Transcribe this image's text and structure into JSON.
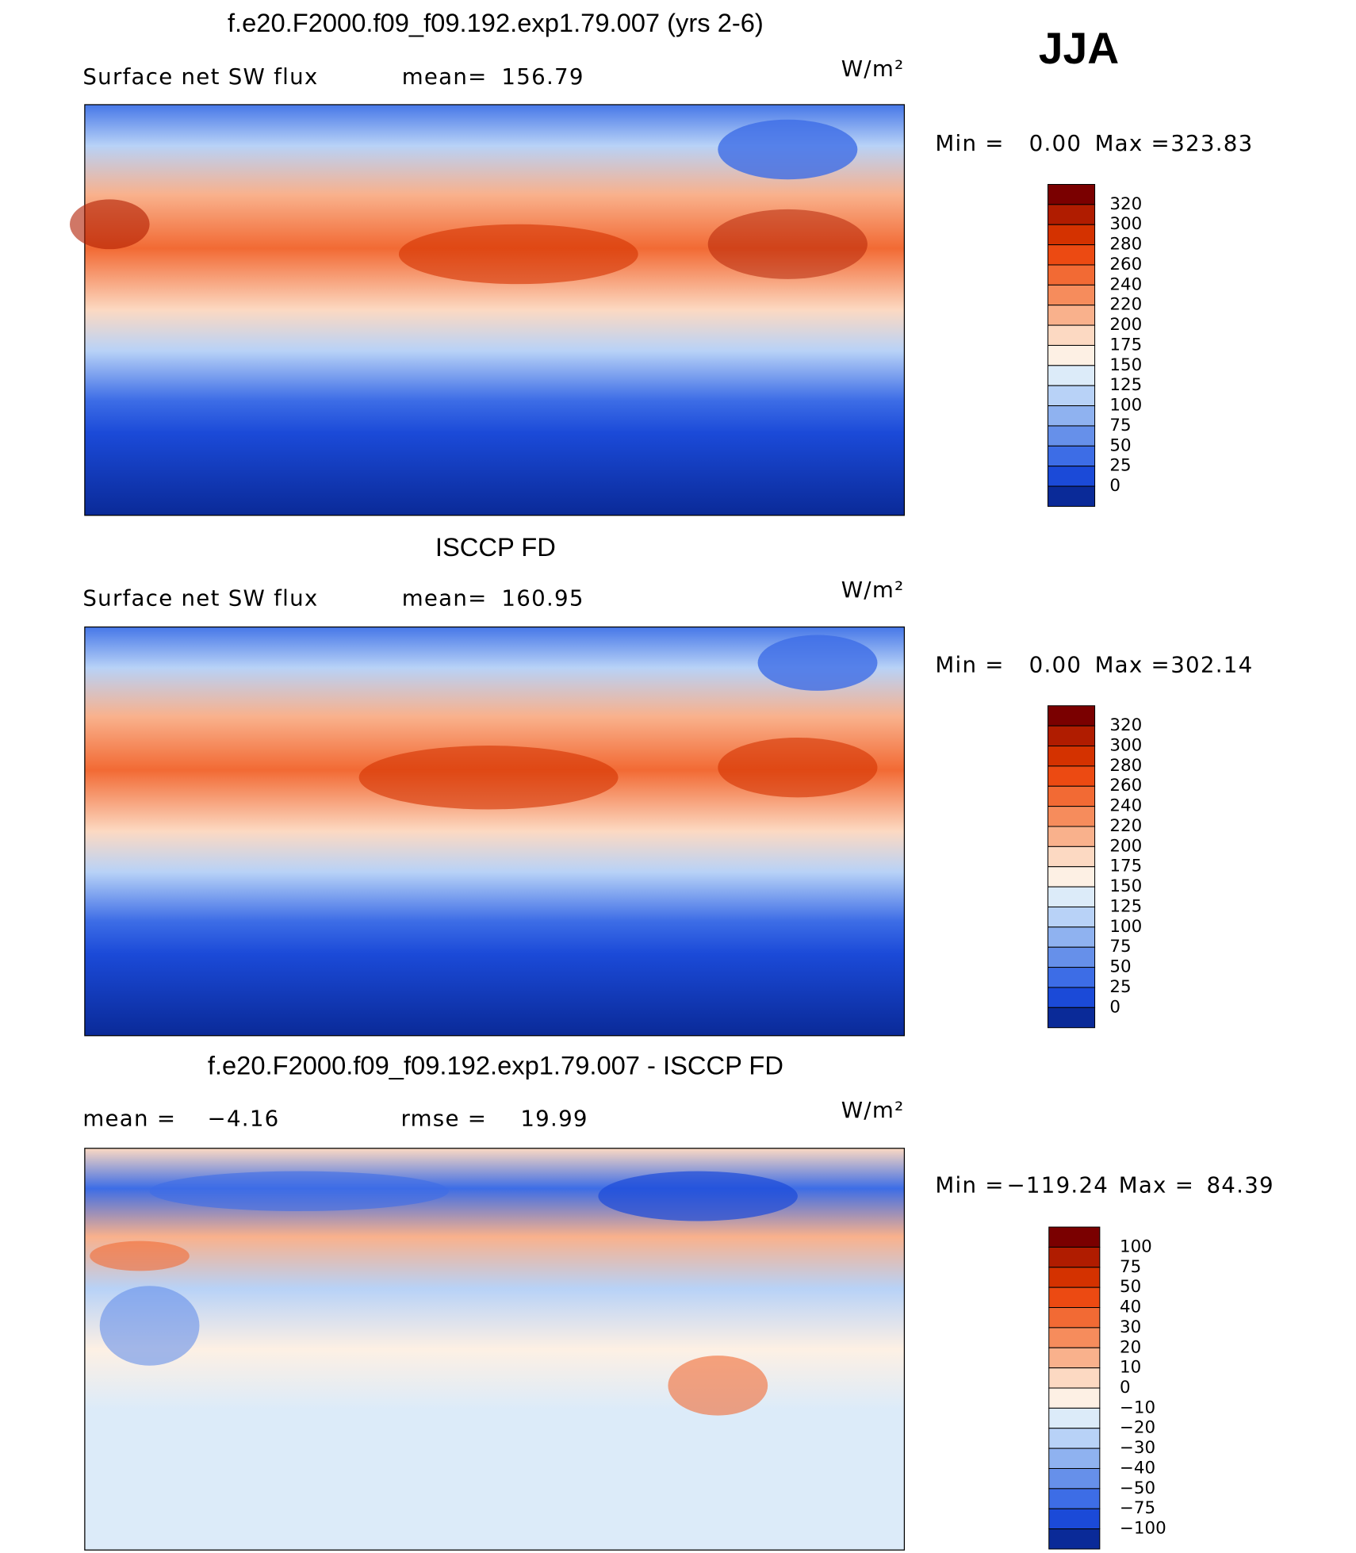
{
  "season": "JJA",
  "panels": [
    {
      "title": "f.e20.F2000.f09_f09.192.exp1.79.007 (yrs 2-6)",
      "annotations": [
        {
          "label": "Surface net SW flux"
        },
        {
          "label": "mean=",
          "value": 156.79
        }
      ],
      "units": "W/m²",
      "min_label": "Min =",
      "min": {
        "value": 0,
        "label": "0.00"
      },
      "max_label": "Max =",
      "max": 323.83,
      "levels": [
        320,
        300,
        280,
        260,
        240,
        220,
        200,
        175,
        150,
        125,
        100,
        75,
        50,
        25,
        0
      ],
      "colors": [
        "#7a0000",
        "#b01c00",
        "#d43200",
        "#ec4a12",
        "#f26a34",
        "#f68c5c",
        "#f9b18c",
        "#fcd9c2",
        "#fdf0e4",
        "#dcebf9",
        "#b8d2f7",
        "#8fb2f0",
        "#6690ea",
        "#3d6de6",
        "#1b4ad8",
        "#0a2a98"
      ]
    },
    {
      "title": "ISCCP FD",
      "annotations": [
        {
          "label": "Surface net SW flux"
        },
        {
          "label": "mean=",
          "value": 160.95
        }
      ],
      "units": "W/m²",
      "min_label": "Min =",
      "min": {
        "value": 0,
        "label": "0.00"
      },
      "max_label": "Max =",
      "max": 302.14,
      "levels": [
        320,
        300,
        280,
        260,
        240,
        220,
        200,
        175,
        150,
        125,
        100,
        75,
        50,
        25,
        0
      ],
      "colors": [
        "#7a0000",
        "#b01c00",
        "#d43200",
        "#ec4a12",
        "#f26a34",
        "#f68c5c",
        "#f9b18c",
        "#fcd9c2",
        "#fdf0e4",
        "#dcebf9",
        "#b8d2f7",
        "#8fb2f0",
        "#6690ea",
        "#3d6de6",
        "#1b4ad8",
        "#0a2a98"
      ]
    },
    {
      "title": "f.e20.F2000.f09_f09.192.exp1.79.007 - ISCCP FD",
      "annotations": [
        {
          "label": "mean =",
          "value": {
            "value": -4.16,
            "label": "−4.16"
          }
        },
        {
          "label": "rmse =",
          "value": 19.99
        }
      ],
      "units": "W/m²",
      "min_label": "Min =",
      "min": {
        "value": -119.24,
        "label": "−119.24"
      },
      "max_label": "Max =",
      "max": 84.39,
      "levels": [
        100,
        75,
        50,
        40,
        30,
        20,
        10,
        0,
        {
          "value": -10,
          "label": "−10"
        },
        {
          "value": -20,
          "label": "−20"
        },
        {
          "value": -30,
          "label": "−30"
        },
        {
          "value": -40,
          "label": "−40"
        },
        {
          "value": -50,
          "label": "−50"
        },
        {
          "value": -75,
          "label": "−75"
        },
        {
          "value": -100,
          "label": "−100"
        }
      ],
      "colors": [
        "#7a0000",
        "#b01c00",
        "#d43200",
        "#ec4a12",
        "#f26a34",
        "#f68c5c",
        "#f9b18c",
        "#fcd9c2",
        "#fdf0e4",
        "#dcebf9",
        "#b8d2f7",
        "#8fb2f0",
        "#6690ea",
        "#3d6de6",
        "#1b4ad8",
        "#0a2a98"
      ]
    }
  ]
}
